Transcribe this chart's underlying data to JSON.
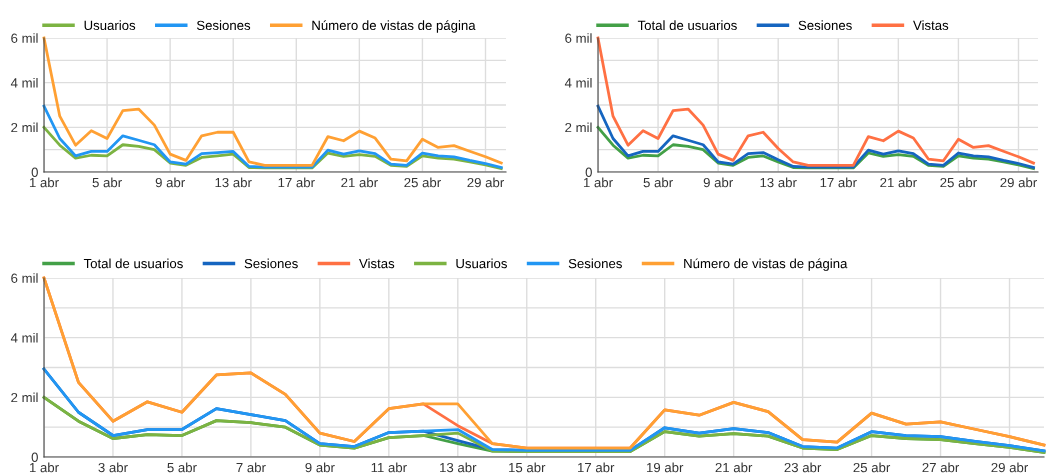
{
  "chart_data": [
    {
      "type": "line",
      "x": [
        1,
        2,
        3,
        4,
        5,
        6,
        7,
        8,
        9,
        10,
        11,
        12,
        13,
        14,
        15,
        16,
        17,
        18,
        19,
        20,
        21,
        22,
        23,
        24,
        25,
        26,
        27,
        28,
        29,
        30
      ],
      "xlim": [
        1,
        30.3
      ],
      "xticks": [
        {
          "value": 1,
          "label": "1 abr"
        },
        {
          "value": 5,
          "label": "5 abr"
        },
        {
          "value": 9,
          "label": "9 abr"
        },
        {
          "value": 13,
          "label": "13 abr"
        },
        {
          "value": 17,
          "label": "17 abr"
        },
        {
          "value": 21,
          "label": "21 abr"
        },
        {
          "value": 25,
          "label": "25 abr"
        },
        {
          "value": 29,
          "label": "29 abr"
        }
      ],
      "ylim": [
        0,
        6
      ],
      "yticks": [
        0,
        {
          "value": 1,
          "label": null
        },
        {
          "value": 2,
          "label": "2 mil"
        },
        {
          "value": 3,
          "label": null
        },
        {
          "value": 4,
          "label": "4 mil"
        },
        {
          "value": 5,
          "label": null
        },
        {
          "value": 6,
          "label": "6 mil"
        }
      ],
      "grid": true,
      "legend": "top",
      "series": [
        {
          "name": "Usuarios",
          "color": "#7cb342",
          "values": [
            2.0,
            1.2,
            0.62,
            0.75,
            0.72,
            1.22,
            1.15,
            1.0,
            0.4,
            0.3,
            0.65,
            0.72,
            0.8,
            0.2,
            0.18,
            0.18,
            0.18,
            0.18,
            0.85,
            0.7,
            0.78,
            0.7,
            0.3,
            0.25,
            0.72,
            0.62,
            0.58,
            0.45,
            0.32,
            0.15
          ]
        },
        {
          "name": "Sesiones",
          "color": "#2196f3",
          "values": [
            2.95,
            1.5,
            0.72,
            0.92,
            0.92,
            1.62,
            1.42,
            1.22,
            0.45,
            0.35,
            0.82,
            0.87,
            0.92,
            0.25,
            0.22,
            0.22,
            0.22,
            0.22,
            0.98,
            0.8,
            0.95,
            0.82,
            0.35,
            0.3,
            0.85,
            0.72,
            0.68,
            0.52,
            0.38,
            0.2
          ]
        },
        {
          "name": "Número de vistas de página",
          "color": "#ffa033",
          "values": [
            6.0,
            2.5,
            1.2,
            1.85,
            1.5,
            2.75,
            2.82,
            2.1,
            0.8,
            0.52,
            1.62,
            1.78,
            1.78,
            0.45,
            0.3,
            0.3,
            0.3,
            0.3,
            1.58,
            1.4,
            1.83,
            1.52,
            0.58,
            0.5,
            1.47,
            1.1,
            1.18,
            0.93,
            0.68,
            0.4
          ]
        }
      ]
    },
    {
      "type": "line",
      "x": [
        1,
        2,
        3,
        4,
        5,
        6,
        7,
        8,
        9,
        10,
        11,
        12,
        13,
        14,
        15,
        16,
        17,
        18,
        19,
        20,
        21,
        22,
        23,
        24,
        25,
        26,
        27,
        28,
        29,
        30
      ],
      "xlim": [
        1,
        30.3
      ],
      "xticks": [
        {
          "value": 1,
          "label": "1 abr"
        },
        {
          "value": 5,
          "label": "5 abr"
        },
        {
          "value": 9,
          "label": "9 abr"
        },
        {
          "value": 13,
          "label": "13 abr"
        },
        {
          "value": 17,
          "label": "17 abr"
        },
        {
          "value": 21,
          "label": "21 abr"
        },
        {
          "value": 25,
          "label": "25 abr"
        },
        {
          "value": 29,
          "label": "29 abr"
        }
      ],
      "ylim": [
        0,
        6
      ],
      "yticks": [
        0,
        {
          "value": 1,
          "label": null
        },
        {
          "value": 2,
          "label": "2 mil"
        },
        {
          "value": 3,
          "label": null
        },
        {
          "value": 4,
          "label": "4 mil"
        },
        {
          "value": 5,
          "label": null
        },
        {
          "value": 6,
          "label": "6 mil"
        }
      ],
      "grid": true,
      "legend": "top",
      "series": [
        {
          "name": "Total de usuarios",
          "color": "#43a047",
          "values": [
            2.0,
            1.2,
            0.62,
            0.75,
            0.72,
            1.22,
            1.15,
            1.0,
            0.4,
            0.3,
            0.65,
            0.72,
            0.45,
            0.2,
            0.18,
            0.18,
            0.18,
            0.18,
            0.85,
            0.7,
            0.78,
            0.7,
            0.3,
            0.25,
            0.72,
            0.62,
            0.58,
            0.45,
            0.32,
            0.15
          ]
        },
        {
          "name": "Sesiones",
          "color": "#1565c0",
          "values": [
            2.95,
            1.5,
            0.72,
            0.92,
            0.92,
            1.62,
            1.42,
            1.22,
            0.45,
            0.35,
            0.82,
            0.87,
            0.55,
            0.25,
            0.22,
            0.22,
            0.22,
            0.22,
            0.98,
            0.8,
            0.95,
            0.82,
            0.35,
            0.3,
            0.85,
            0.72,
            0.68,
            0.52,
            0.38,
            0.2
          ]
        },
        {
          "name": "Vistas",
          "color": "#ff7043",
          "values": [
            6.0,
            2.5,
            1.2,
            1.85,
            1.5,
            2.75,
            2.82,
            2.1,
            0.8,
            0.52,
            1.62,
            1.78,
            1.05,
            0.45,
            0.3,
            0.3,
            0.3,
            0.3,
            1.58,
            1.4,
            1.83,
            1.52,
            0.58,
            0.5,
            1.47,
            1.1,
            1.18,
            0.93,
            0.68,
            0.4
          ]
        }
      ]
    },
    {
      "type": "line",
      "x": [
        1,
        2,
        3,
        4,
        5,
        6,
        7,
        8,
        9,
        10,
        11,
        12,
        13,
        14,
        15,
        16,
        17,
        18,
        19,
        20,
        21,
        22,
        23,
        24,
        25,
        26,
        27,
        28,
        29,
        30
      ],
      "xlim": [
        1,
        30
      ],
      "xticks": [
        {
          "value": 1,
          "label": "1 abr"
        },
        {
          "value": 3,
          "label": "3 abr"
        },
        {
          "value": 5,
          "label": "5 abr"
        },
        {
          "value": 7,
          "label": "7 abr"
        },
        {
          "value": 9,
          "label": "9 abr"
        },
        {
          "value": 11,
          "label": "11 abr"
        },
        {
          "value": 13,
          "label": "13 abr"
        },
        {
          "value": 15,
          "label": "15 abr"
        },
        {
          "value": 17,
          "label": "17 abr"
        },
        {
          "value": 19,
          "label": "19 abr"
        },
        {
          "value": 21,
          "label": "21 abr"
        },
        {
          "value": 23,
          "label": "23 abr"
        },
        {
          "value": 25,
          "label": "25 abr"
        },
        {
          "value": 27,
          "label": "27 abr"
        },
        {
          "value": 29,
          "label": "29 abr"
        }
      ],
      "ylim": [
        0,
        6
      ],
      "yticks": [
        0,
        {
          "value": 1,
          "label": null
        },
        {
          "value": 2,
          "label": "2 mil"
        },
        {
          "value": 3,
          "label": null
        },
        {
          "value": 4,
          "label": "4 mil"
        },
        {
          "value": 5,
          "label": null
        },
        {
          "value": 6,
          "label": "6 mil"
        }
      ],
      "grid": true,
      "legend": "top",
      "series": [
        {
          "name": "Total de usuarios",
          "color": "#43a047",
          "values": [
            2.0,
            1.2,
            0.62,
            0.75,
            0.72,
            1.22,
            1.15,
            1.0,
            0.4,
            0.3,
            0.65,
            0.72,
            0.45,
            0.2,
            0.18,
            0.18,
            0.18,
            0.18,
            0.85,
            0.7,
            0.78,
            0.7,
            0.3,
            0.25,
            0.72,
            0.62,
            0.58,
            0.45,
            0.32,
            0.15
          ]
        },
        {
          "name": "Sesiones",
          "color": "#1565c0",
          "values": [
            2.95,
            1.5,
            0.72,
            0.92,
            0.92,
            1.62,
            1.42,
            1.22,
            0.45,
            0.35,
            0.82,
            0.87,
            0.55,
            0.25,
            0.22,
            0.22,
            0.22,
            0.22,
            0.98,
            0.8,
            0.95,
            0.82,
            0.35,
            0.3,
            0.85,
            0.72,
            0.68,
            0.52,
            0.38,
            0.2
          ]
        },
        {
          "name": "Vistas",
          "color": "#ff7043",
          "values": [
            6.0,
            2.5,
            1.2,
            1.85,
            1.5,
            2.75,
            2.82,
            2.1,
            0.8,
            0.52,
            1.62,
            1.78,
            1.05,
            0.45,
            0.3,
            0.3,
            0.3,
            0.3,
            1.58,
            1.4,
            1.83,
            1.52,
            0.58,
            0.5,
            1.47,
            1.1,
            1.18,
            0.93,
            0.68,
            0.4
          ]
        },
        {
          "name": "Usuarios",
          "color": "#7cb342",
          "values": [
            2.0,
            1.2,
            0.62,
            0.75,
            0.72,
            1.22,
            1.15,
            1.0,
            0.4,
            0.3,
            0.65,
            0.72,
            0.8,
            0.2,
            0.18,
            0.18,
            0.18,
            0.18,
            0.85,
            0.7,
            0.78,
            0.7,
            0.3,
            0.25,
            0.72,
            0.62,
            0.58,
            0.45,
            0.32,
            0.15
          ]
        },
        {
          "name": "Sesiones",
          "color": "#2196f3",
          "values": [
            2.95,
            1.5,
            0.72,
            0.92,
            0.92,
            1.62,
            1.42,
            1.22,
            0.45,
            0.35,
            0.82,
            0.87,
            0.92,
            0.25,
            0.22,
            0.22,
            0.22,
            0.22,
            0.98,
            0.8,
            0.95,
            0.82,
            0.35,
            0.3,
            0.85,
            0.72,
            0.68,
            0.52,
            0.38,
            0.2
          ]
        },
        {
          "name": "Número de vistas de página",
          "color": "#ffa033",
          "values": [
            6.0,
            2.5,
            1.2,
            1.85,
            1.5,
            2.75,
            2.82,
            2.1,
            0.8,
            0.52,
            1.62,
            1.78,
            1.78,
            0.45,
            0.3,
            0.3,
            0.3,
            0.3,
            1.58,
            1.4,
            1.83,
            1.52,
            0.58,
            0.5,
            1.47,
            1.1,
            1.18,
            0.93,
            0.68,
            0.4
          ]
        }
      ]
    }
  ]
}
